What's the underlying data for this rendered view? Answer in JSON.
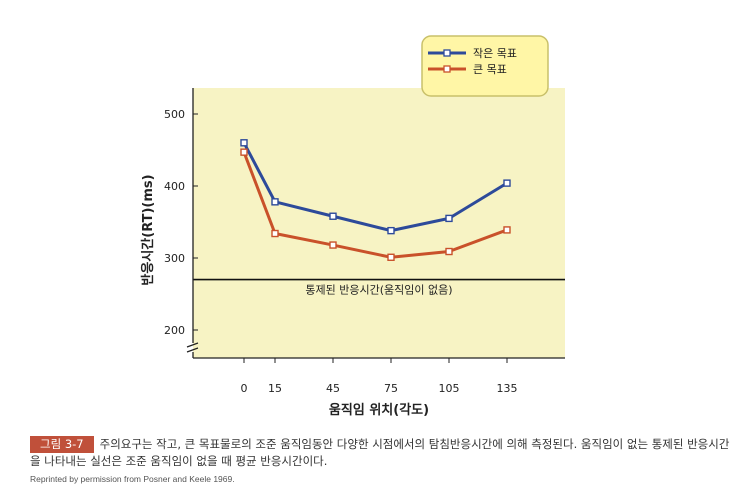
{
  "chart_data": {
    "type": "line",
    "x": [
      0,
      15,
      45,
      75,
      105,
      135
    ],
    "series": [
      {
        "name": "작은 목표",
        "values": [
          460,
          378,
          358,
          338,
          355,
          404
        ],
        "color": "#2d4a9a"
      },
      {
        "name": "큰 목표",
        "values": [
          447,
          334,
          318,
          301,
          309,
          339
        ],
        "color": "#c9512a"
      }
    ],
    "xlabel": "움직임 위치(각도)",
    "ylabel": "반응시간(RT)(ms)",
    "x_ticks": [
      "0",
      "15",
      "45",
      "75",
      "105",
      "135"
    ],
    "y_ticks": [
      "200",
      "300",
      "400",
      "500"
    ],
    "ylim": [
      150,
      530
    ],
    "reference_line": {
      "value": 270,
      "label": "통제된 반응시간(움직임이 없음)"
    },
    "legend_placement": "top-right",
    "axis_break": true,
    "background_color": "#f7f3c4"
  },
  "caption": {
    "figure_label": "그림 3-7",
    "text": "주의요구는 작고, 큰 목표물로의 조준 움직임동안 다양한 시점에서의 탐침반응시간에 의해 측정된다. 움직임이 없는 통제된 반응시간을 나타내는 실선은 조준 움직임이 없을 때 평균 반응시간이다.",
    "credit": "Reprinted by permission from Posner and Keele 1969."
  }
}
